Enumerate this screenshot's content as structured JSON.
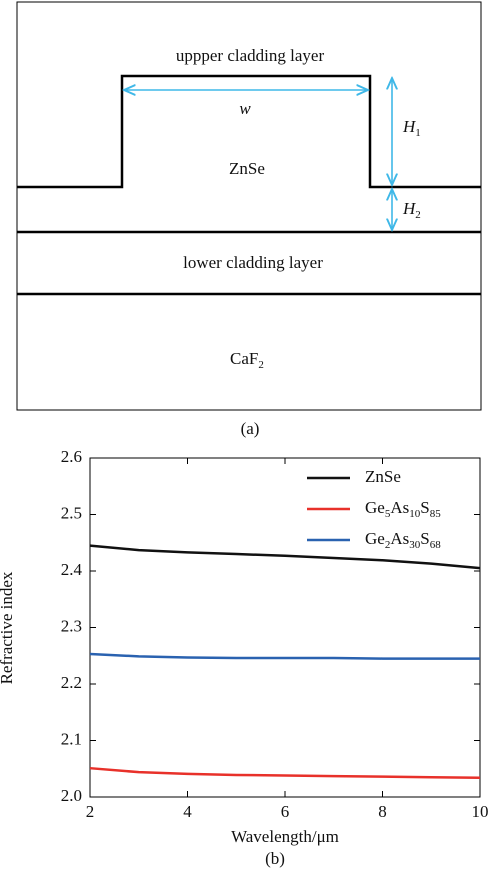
{
  "diagram": {
    "upper_label": "uppper cladding layer",
    "width_label": "w",
    "core_label": "ZnSe",
    "h1_label": "H1",
    "h2_label": "H2",
    "lower_label": "lower cladding layer",
    "substrate_label": "CaF2",
    "caption": "(a)"
  },
  "chart_data": {
    "type": "line",
    "caption": "(b)",
    "x_label": "Wavelength/μm",
    "y_label": "Refractive index",
    "x": [
      2,
      3,
      4,
      5,
      6,
      7,
      8,
      9,
      10
    ],
    "series": [
      {
        "name": "ZnSe",
        "color": "#111111",
        "values": [
          2.445,
          2.437,
          2.433,
          2.43,
          2.427,
          2.423,
          2.419,
          2.413,
          2.405
        ]
      },
      {
        "name": "Ge5As10S85",
        "color": "#e8312a",
        "values": [
          2.051,
          2.044,
          2.041,
          2.039,
          2.038,
          2.037,
          2.036,
          2.035,
          2.034
        ]
      },
      {
        "name": "Ge2As30S68",
        "color": "#2a62b0",
        "values": [
          2.253,
          2.249,
          2.247,
          2.246,
          2.246,
          2.246,
          2.245,
          2.245,
          2.245
        ]
      }
    ],
    "xlim": [
      2,
      10
    ],
    "xticks": [
      2,
      4,
      6,
      8,
      10
    ],
    "ylim": [
      2,
      2.6
    ],
    "yticks": [
      {
        "value": 2,
        "label": "2.0"
      },
      2.1,
      2.2,
      2.3,
      2.4,
      2.5,
      2.6
    ],
    "legend": "upper-right",
    "grid": false
  }
}
